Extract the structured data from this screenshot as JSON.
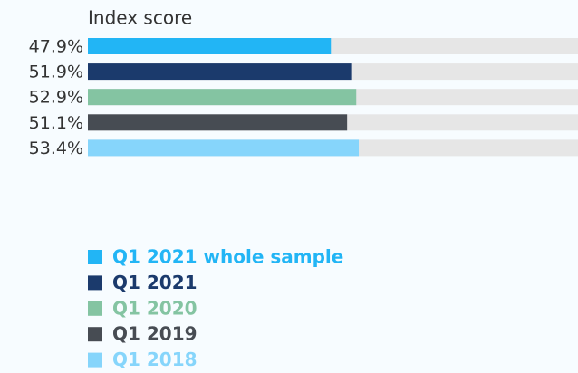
{
  "chart_data": {
    "type": "bar",
    "orientation": "horizontal",
    "title": "Index score",
    "xlim": [
      0,
      100
    ],
    "track_color": "#e6e6e6",
    "series": [
      {
        "name": "Q1 2021 whole sample",
        "color": "#22b5f5",
        "values": [
          47.9
        ],
        "value_labels": [
          "47.9%"
        ]
      },
      {
        "name": "Q1 2021",
        "color": "#1b3a6c",
        "values": [
          51.9
        ],
        "value_labels": [
          "51.9%"
        ]
      },
      {
        "name": "Q1 2020",
        "color": "#84c4a2",
        "values": [
          52.9
        ],
        "value_labels": [
          "52.9%"
        ]
      },
      {
        "name": "Q1 2019",
        "color": "#474c53",
        "values": [
          51.1
        ],
        "value_labels": [
          "51.1%"
        ]
      },
      {
        "name": "Q1 2018",
        "color": "#86d5fb",
        "values": [
          53.4
        ],
        "value_labels": [
          "53.4%"
        ]
      }
    ]
  }
}
